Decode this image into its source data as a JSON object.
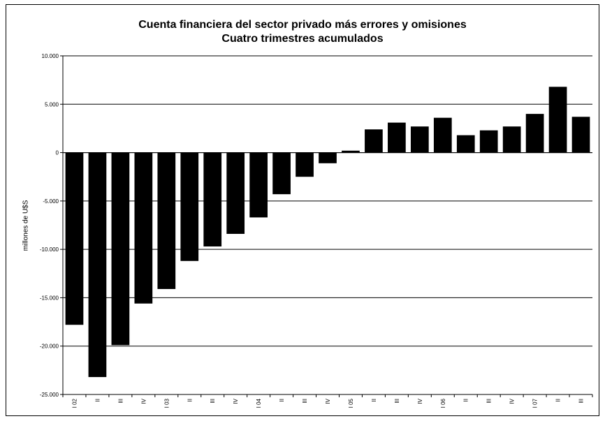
{
  "chart_data": {
    "type": "bar",
    "title": "Cuenta financiera del sector privado más errores y omisiones",
    "subtitle": "Cuatro trimestres acumulados",
    "xlabel": "",
    "ylabel": "millones de U$S",
    "ylim": [
      -25000,
      10000
    ],
    "yticks": [
      10000,
      5000,
      0,
      -5000,
      -10000,
      -15000,
      -20000,
      -25000
    ],
    "ytick_labels": [
      "10.000",
      "5.000",
      "0",
      "-5.000",
      "-10.000",
      "-15.000",
      "-20.000",
      "-25.000"
    ],
    "grid": true,
    "bar_color": "#000000",
    "categories": [
      "I 02",
      "II",
      "III",
      "IV",
      "I 03",
      "II",
      "III",
      "IV",
      "I 04",
      "II",
      "III",
      "IV",
      "I 05",
      "II",
      "III",
      "IV",
      "I 06",
      "II",
      "III",
      "IV",
      "I 07",
      "II",
      "III"
    ],
    "values": [
      -17800,
      -23200,
      -19900,
      -15600,
      -14100,
      -11200,
      -9700,
      -8400,
      -6700,
      -4300,
      -2500,
      -1100,
      200,
      2400,
      3100,
      2700,
      3600,
      1800,
      2300,
      2700,
      4000,
      6800,
      3700
    ]
  }
}
